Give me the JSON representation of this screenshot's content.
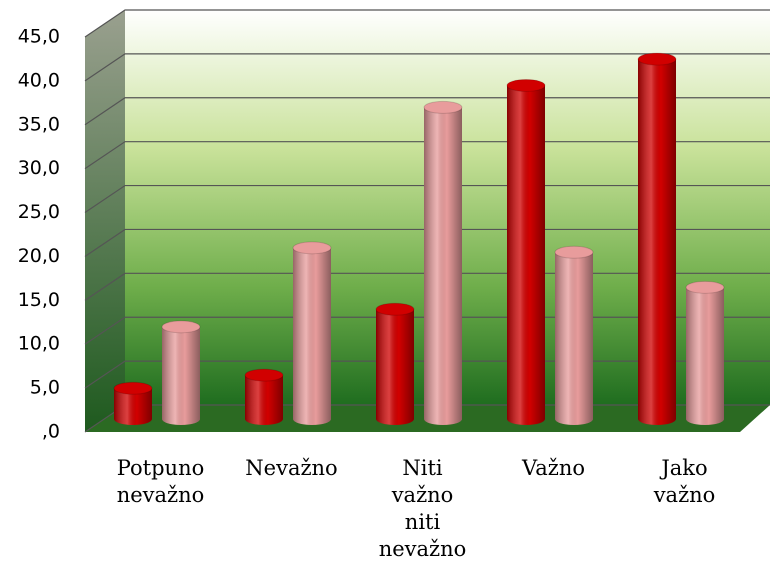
{
  "chart_data": {
    "type": "bar",
    "categories": [
      "Potpuno nevažno",
      "Nevažno",
      "Niti važno niti nevažno",
      "Važno",
      "Jako važno"
    ],
    "series": [
      {
        "color": "#d10000",
        "values": [
          3.5,
          5,
          12.5,
          38,
          41
        ]
      },
      {
        "color": "#e89c9c",
        "values": [
          10.5,
          19.5,
          35.5,
          19,
          15
        ]
      }
    ],
    "ylim": [
      0,
      45
    ],
    "yticks": [
      {
        "value": 0,
        "label": ",0"
      },
      {
        "value": 5,
        "label": "5,0"
      },
      {
        "value": 10,
        "label": "10,0"
      },
      {
        "value": 15,
        "label": "15,0"
      },
      {
        "value": 20,
        "label": "20,0"
      },
      {
        "value": 25,
        "label": "25,0"
      },
      {
        "value": 30,
        "label": "30,0"
      },
      {
        "value": 35,
        "label": "35,0"
      },
      {
        "value": 40,
        "label": "40,0"
      },
      {
        "value": 45,
        "label": "45,0"
      }
    ],
    "grid": true
  }
}
